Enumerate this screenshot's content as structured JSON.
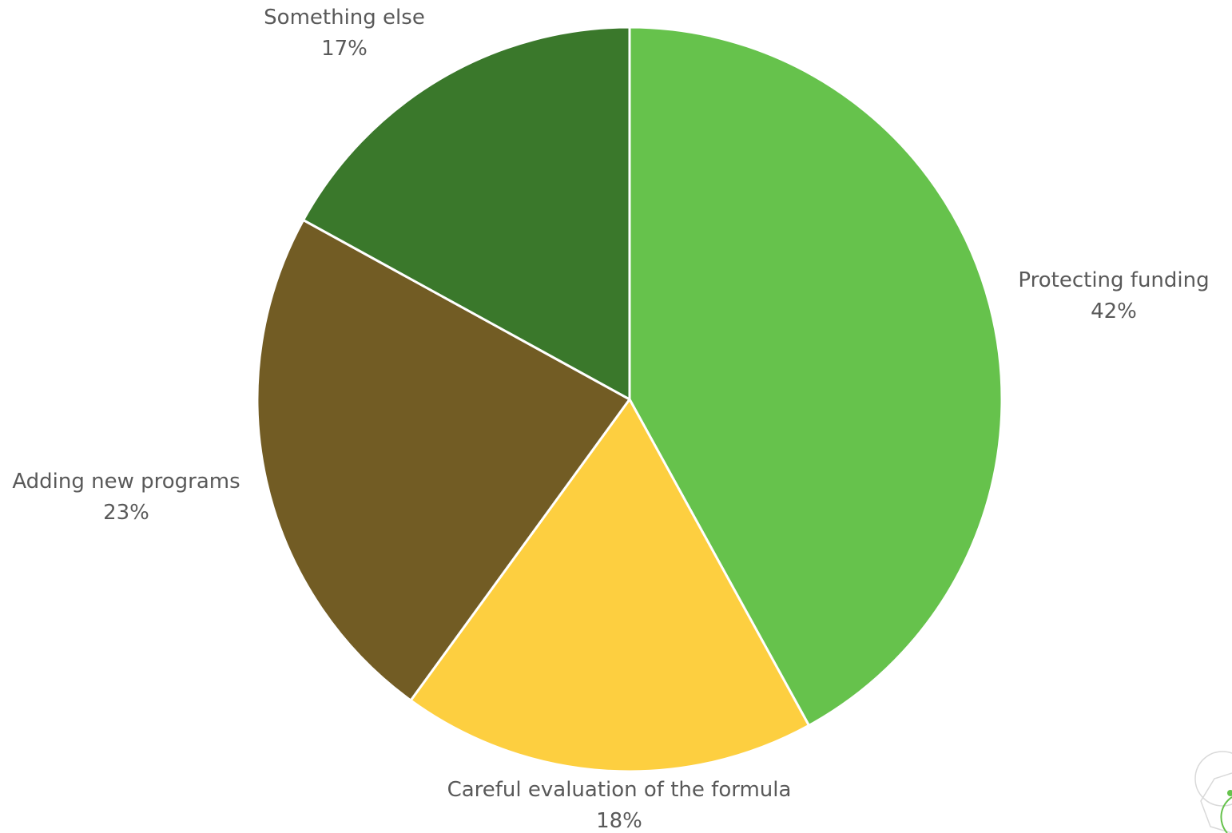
{
  "chart_data": {
    "type": "pie",
    "start_angle_deg": 0,
    "direction": "clockwise",
    "slices": [
      {
        "label": "Protecting funding",
        "value": 42,
        "value_label": "42%",
        "color": "#66C24C"
      },
      {
        "label": "Careful evaluation of the formula",
        "value": 18,
        "value_label": "18%",
        "color": "#FDCF40"
      },
      {
        "label": "Adding new programs",
        "value": 23,
        "value_label": "23%",
        "color": "#725C24"
      },
      {
        "label": "Something else",
        "value": 17,
        "value_label": "17%",
        "color": "#3A782B"
      }
    ]
  },
  "decor": {
    "corner_logo": "hexagon-circle-logo",
    "corner_logo_colors": [
      "#D9D9D9",
      "#66C24C"
    ]
  }
}
